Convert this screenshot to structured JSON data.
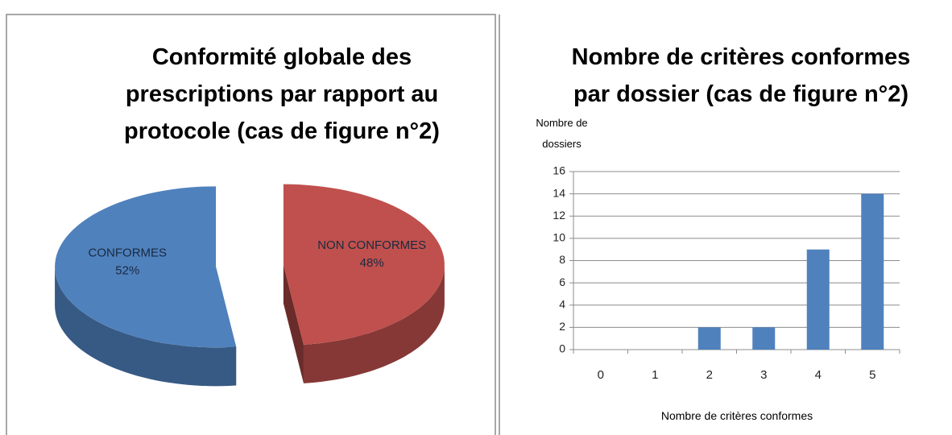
{
  "chart_data": [
    {
      "type": "pie3d",
      "title": "Conformité globale des prescriptions par rapport au protocole  (cas de figure n°2)",
      "categories": [
        "CONFORMES",
        "NON CONFORMES"
      ],
      "values": [
        52,
        48
      ],
      "value_labels": [
        "52%",
        "48%"
      ],
      "colors": [
        "#4f81bd",
        "#c0504d"
      ]
    },
    {
      "type": "bar",
      "title": "Nombre de critères conformes par dossier (cas de figure n°2)",
      "y_label": "Nombre de dossiers",
      "x_label": "Nombre de critères conformes",
      "categories": [
        "0",
        "1",
        "2",
        "3",
        "4",
        "5"
      ],
      "values": [
        0,
        0,
        2,
        2,
        9,
        14
      ],
      "color": "#4f81bd",
      "ylim": [
        0,
        16
      ],
      "yticks": [
        0,
        2,
        4,
        6,
        8,
        10,
        12,
        14,
        16
      ],
      "grid": true
    }
  ]
}
